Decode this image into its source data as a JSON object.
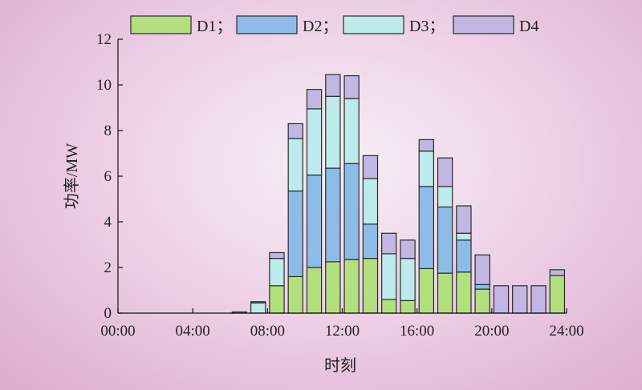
{
  "chart_data": {
    "type": "bar",
    "stacked": true,
    "xlabel": "时刻",
    "ylabel": "功率/MW",
    "ylim": [
      0,
      12
    ],
    "yticks": [
      "0",
      "2",
      "4",
      "6",
      "8",
      "10",
      "12"
    ],
    "xticks": [
      "00:00",
      "04:00",
      "08:00",
      "12:00",
      "16:00",
      "20:00",
      "24:00"
    ],
    "xlim_hours": [
      0,
      24
    ],
    "hours": [
      6,
      7,
      8,
      9,
      10,
      11,
      12,
      13,
      14,
      15,
      16,
      17,
      18,
      19,
      20,
      21,
      22,
      23
    ],
    "series": [
      {
        "name": "D1",
        "legend_label": "D1；",
        "color": "#b3e07e",
        "values": [
          0.0,
          0.0,
          1.2,
          1.6,
          2.0,
          2.25,
          2.35,
          2.4,
          0.6,
          0.55,
          1.95,
          1.75,
          1.8,
          1.05,
          0,
          0,
          0,
          1.65
        ]
      },
      {
        "name": "D2",
        "legend_label": "D2；",
        "color": "#8dbde6",
        "values": [
          0.0,
          0.0,
          0.0,
          3.75,
          4.05,
          4.1,
          4.2,
          1.5,
          0.0,
          0.0,
          3.6,
          2.9,
          1.4,
          0.2,
          0,
          0,
          0,
          0.0
        ]
      },
      {
        "name": "D3",
        "legend_label": "D3；",
        "color": "#bdeaea",
        "values": [
          0.0,
          0.45,
          1.2,
          2.3,
          2.9,
          3.15,
          2.85,
          2.0,
          2.0,
          1.85,
          1.55,
          0.9,
          0.3,
          0.0,
          0,
          0,
          0,
          0.0
        ]
      },
      {
        "name": "D4",
        "legend_label": "D4",
        "color": "#c1b7e2",
        "values": [
          0.05,
          0.05,
          0.25,
          0.65,
          0.85,
          0.95,
          1.0,
          1.0,
          0.9,
          0.8,
          0.5,
          1.25,
          1.2,
          1.3,
          1.2,
          1.2,
          1.2,
          0.25
        ]
      }
    ],
    "grid": false,
    "legend_position": "top"
  }
}
